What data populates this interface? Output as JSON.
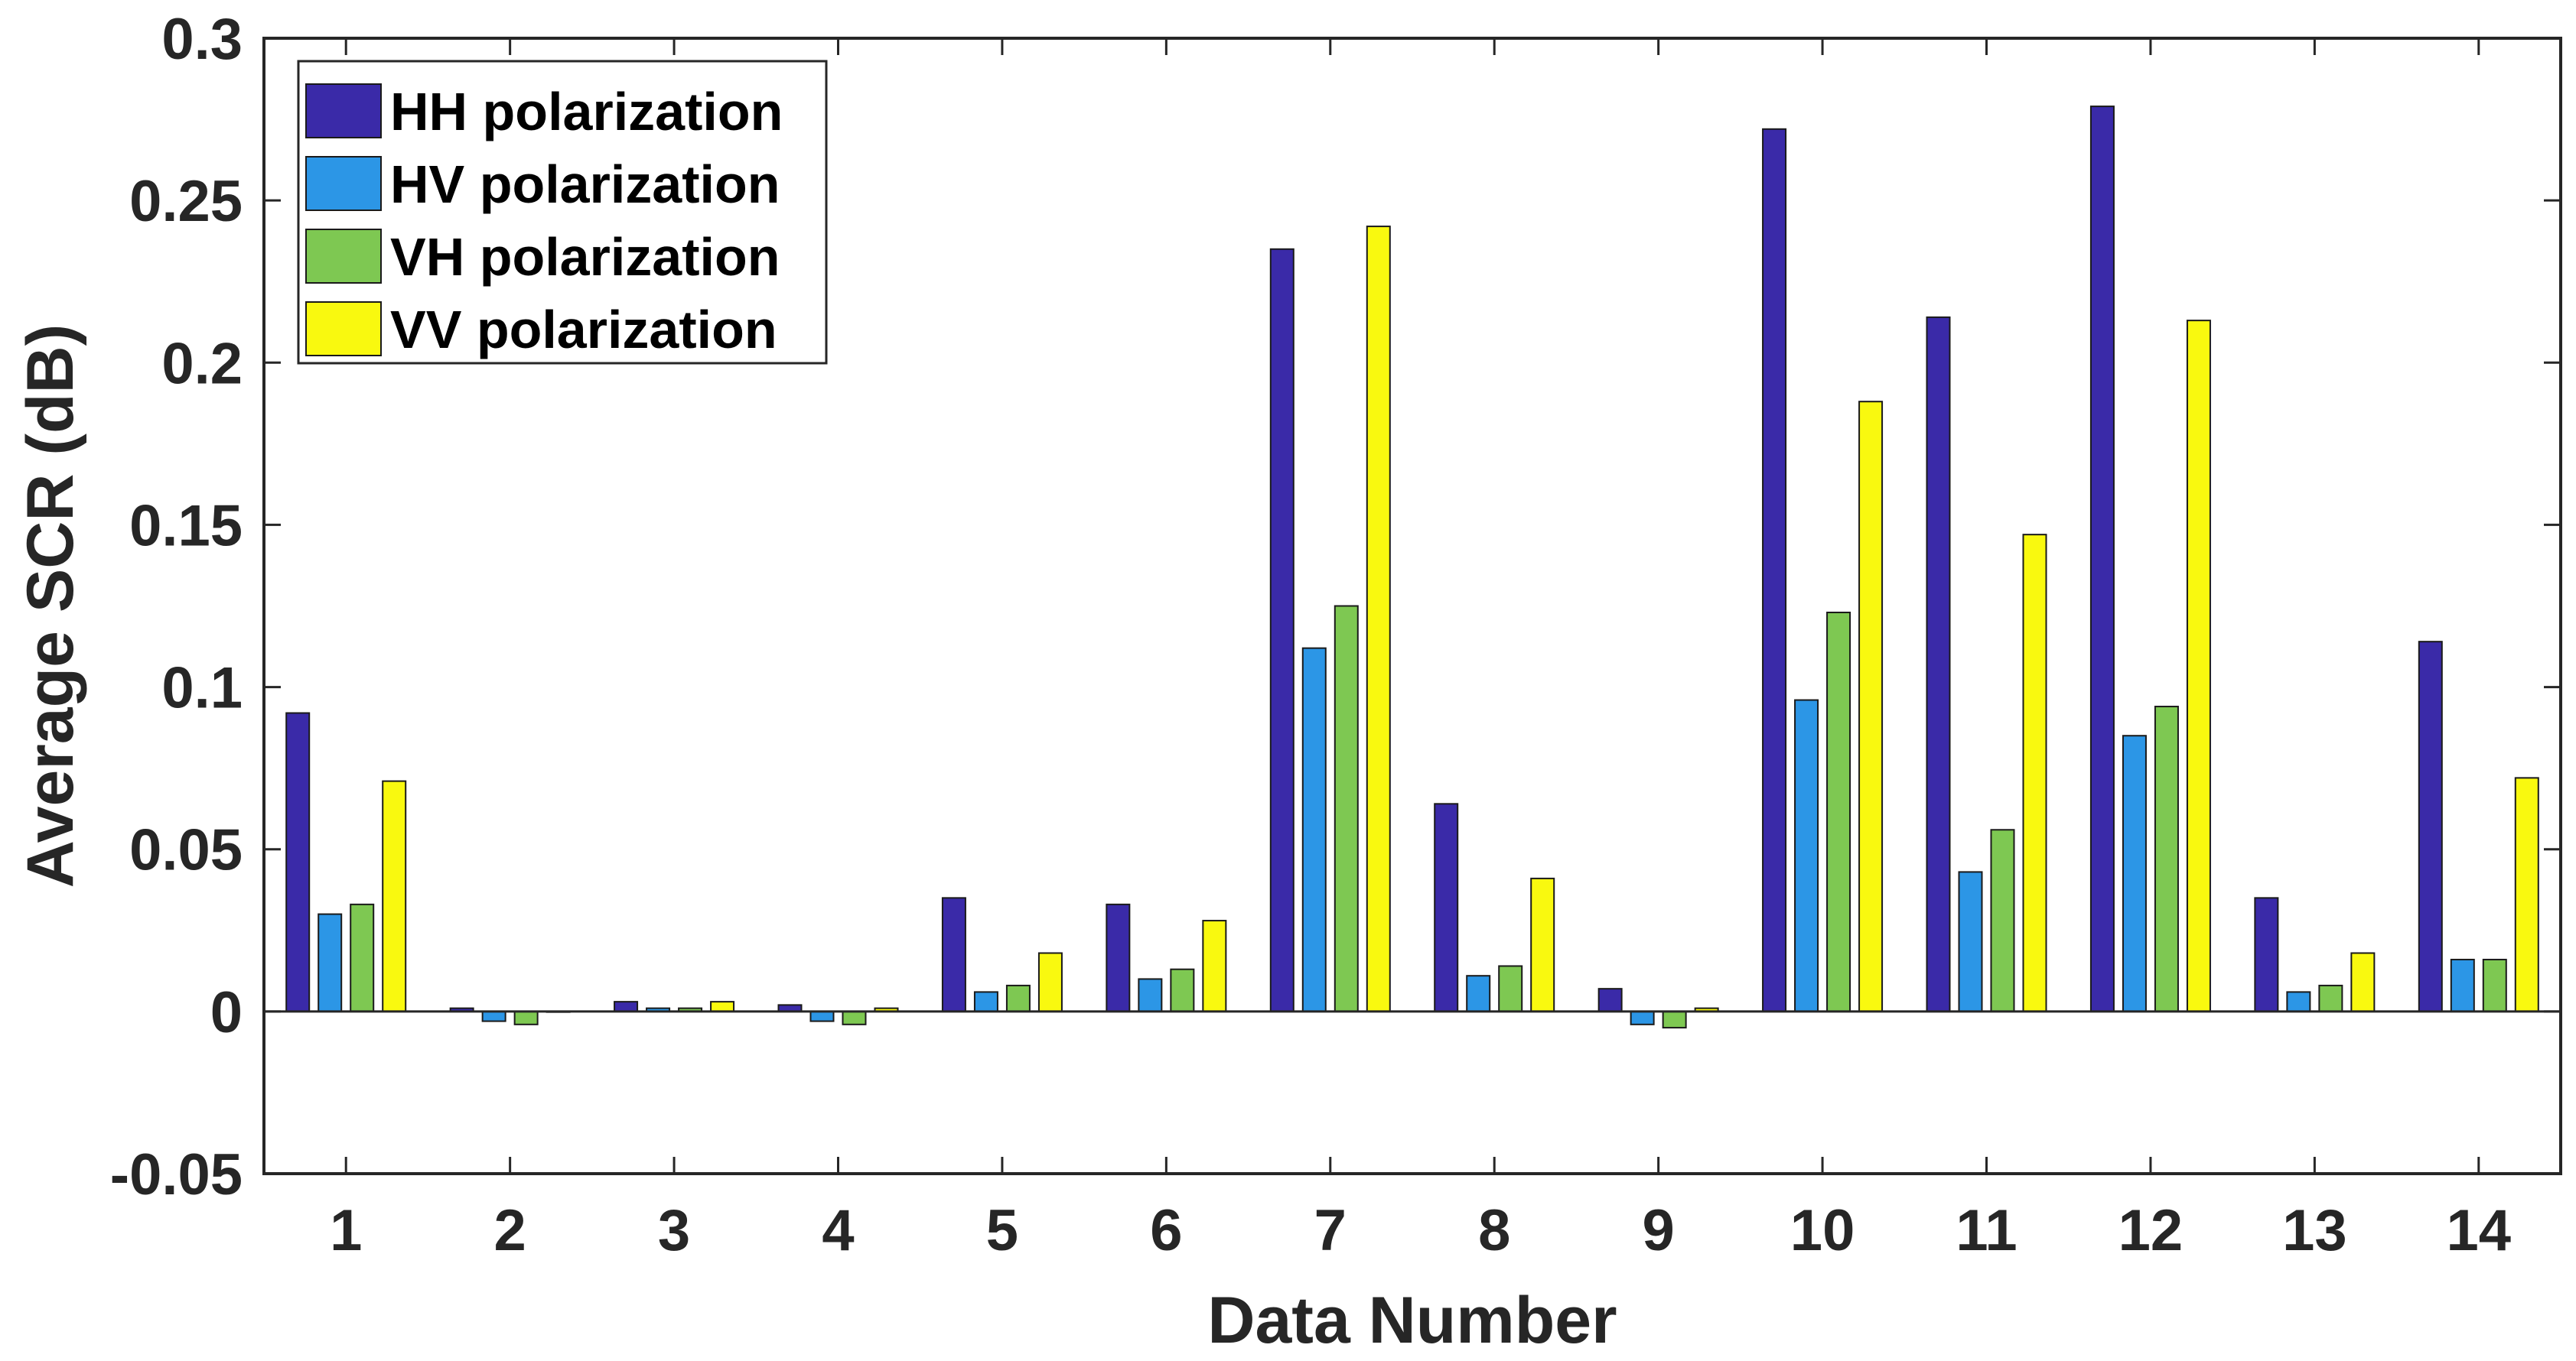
{
  "chart_data": {
    "type": "bar",
    "title": "",
    "xlabel": "Data Number",
    "ylabel": "Average SCR (dB)",
    "ylim": [
      -0.05,
      0.3
    ],
    "yticks": [
      "-0.05",
      "0",
      "0.05",
      "0.1",
      "0.15",
      "0.2",
      "0.25",
      "0.3"
    ],
    "ytick_values": [
      -0.05,
      0,
      0.05,
      0.1,
      0.15,
      0.2,
      0.25,
      0.3
    ],
    "categories": [
      "1",
      "2",
      "3",
      "4",
      "5",
      "6",
      "7",
      "8",
      "9",
      "10",
      "11",
      "12",
      "13",
      "14"
    ],
    "legend_position": "top-left",
    "grid": false,
    "series": [
      {
        "name": "HH polarization",
        "color": "#3a2aa8",
        "values": [
          0.092,
          0.001,
          0.003,
          0.002,
          0.035,
          0.033,
          0.235,
          0.064,
          0.007,
          0.272,
          0.214,
          0.279,
          0.035,
          0.114
        ]
      },
      {
        "name": "HV polarization",
        "color": "#2c96e6",
        "values": [
          0.03,
          -0.003,
          0.001,
          -0.003,
          0.006,
          0.01,
          0.112,
          0.011,
          -0.004,
          0.096,
          0.043,
          0.085,
          0.006,
          0.016
        ]
      },
      {
        "name": "VH polarization",
        "color": "#7ec852",
        "values": [
          0.033,
          -0.004,
          0.001,
          -0.004,
          0.008,
          0.013,
          0.125,
          0.014,
          -0.005,
          0.123,
          0.056,
          0.094,
          0.008,
          0.016
        ]
      },
      {
        "name": "VV polarization",
        "color": "#f9f90f",
        "values": [
          0.071,
          0.0,
          0.003,
          0.001,
          0.018,
          0.028,
          0.242,
          0.041,
          0.001,
          0.188,
          0.147,
          0.213,
          0.018,
          0.072
        ]
      }
    ]
  }
}
